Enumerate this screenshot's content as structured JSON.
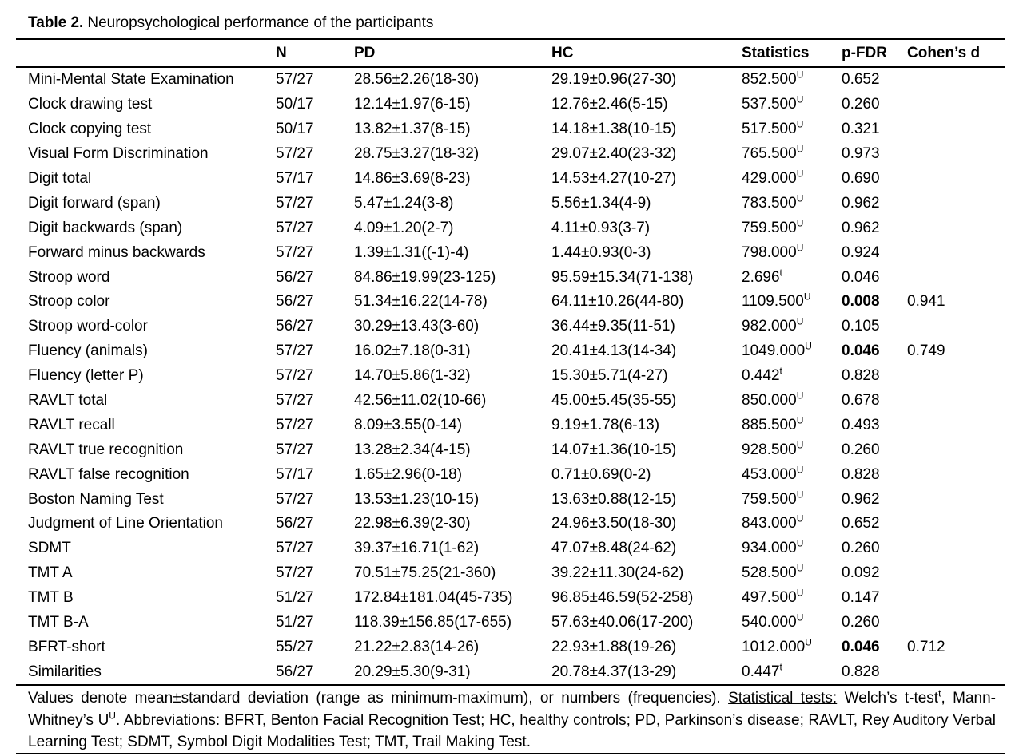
{
  "title": {
    "label": "Table 2.",
    "caption": "Neuropsychological performance of the participants"
  },
  "table": {
    "columns": [
      "",
      "N",
      "PD",
      "HC",
      "Statistics",
      "p-FDR",
      "Cohen’s d"
    ],
    "rows": [
      {
        "name": "Mini-Mental State Examination",
        "n": "57/27",
        "pd": "28.56±2.26(18-30)",
        "hc": "29.19±0.96(27-30)",
        "stat": "852.500",
        "stat_sup": "U",
        "p_fdr": "0.652",
        "p_bold": false,
        "cohens_d": ""
      },
      {
        "name": "Clock drawing test",
        "n": "50/17",
        "pd": "12.14±1.97(6-15)",
        "hc": "12.76±2.46(5-15)",
        "stat": "537.500",
        "stat_sup": "U",
        "p_fdr": "0.260",
        "p_bold": false,
        "cohens_d": ""
      },
      {
        "name": "Clock copying test",
        "n": "50/17",
        "pd": "13.82±1.37(8-15)",
        "hc": "14.18±1.38(10-15)",
        "stat": "517.500",
        "stat_sup": "U",
        "p_fdr": "0.321",
        "p_bold": false,
        "cohens_d": ""
      },
      {
        "name": "Visual Form Discrimination",
        "n": "57/27",
        "pd": "28.75±3.27(18-32)",
        "hc": "29.07±2.40(23-32)",
        "stat": "765.500",
        "stat_sup": "U",
        "p_fdr": "0.973",
        "p_bold": false,
        "cohens_d": ""
      },
      {
        "name": "Digit total",
        "n": "57/17",
        "pd": "14.86±3.69(8-23)",
        "hc": "14.53±4.27(10-27)",
        "stat": "429.000",
        "stat_sup": "U",
        "p_fdr": "0.690",
        "p_bold": false,
        "cohens_d": ""
      },
      {
        "name": "Digit forward (span)",
        "n": "57/27",
        "pd": "5.47±1.24(3-8)",
        "hc": "5.56±1.34(4-9)",
        "stat": "783.500",
        "stat_sup": "U",
        "p_fdr": "0.962",
        "p_bold": false,
        "cohens_d": ""
      },
      {
        "name": "Digit backwards (span)",
        "n": "57/27",
        "pd": "4.09±1.20(2-7)",
        "hc": "4.11±0.93(3-7)",
        "stat": "759.500",
        "stat_sup": "U",
        "p_fdr": "0.962",
        "p_bold": false,
        "cohens_d": ""
      },
      {
        "name": "Forward minus backwards",
        "n": "57/27",
        "pd": "1.39±1.31((-1)-4)",
        "hc": "1.44±0.93(0-3)",
        "stat": "798.000",
        "stat_sup": "U",
        "p_fdr": "0.924",
        "p_bold": false,
        "cohens_d": ""
      },
      {
        "name": "Stroop word",
        "n": "56/27",
        "pd": "84.86±19.99(23-125)",
        "hc": "95.59±15.34(71-138)",
        "stat": "2.696",
        "stat_sup": "t",
        "p_fdr": "0.046",
        "p_bold": false,
        "cohens_d": ""
      },
      {
        "name": "Stroop color",
        "n": "56/27",
        "pd": "51.34±16.22(14-78)",
        "hc": "64.11±10.26(44-80)",
        "stat": "1109.500",
        "stat_sup": "U",
        "p_fdr": "0.008",
        "p_bold": true,
        "cohens_d": "0.941"
      },
      {
        "name": "Stroop word-color",
        "n": "56/27",
        "pd": "30.29±13.43(3-60)",
        "hc": "36.44±9.35(11-51)",
        "stat": "982.000",
        "stat_sup": "U",
        "p_fdr": "0.105",
        "p_bold": false,
        "cohens_d": ""
      },
      {
        "name": "Fluency (animals)",
        "n": "57/27",
        "pd": "16.02±7.18(0-31)",
        "hc": "20.41±4.13(14-34)",
        "stat": "1049.000",
        "stat_sup": "U",
        "p_fdr": "0.046",
        "p_bold": true,
        "cohens_d": "0.749"
      },
      {
        "name": "Fluency (letter P)",
        "n": "57/27",
        "pd": "14.70±5.86(1-32)",
        "hc": "15.30±5.71(4-27)",
        "stat": "0.442",
        "stat_sup": "t",
        "p_fdr": "0.828",
        "p_bold": false,
        "cohens_d": ""
      },
      {
        "name": "RAVLT total",
        "n": "57/27",
        "pd": "42.56±11.02(10-66)",
        "hc": "45.00±5.45(35-55)",
        "stat": "850.000",
        "stat_sup": "U",
        "p_fdr": "0.678",
        "p_bold": false,
        "cohens_d": ""
      },
      {
        "name": "RAVLT recall",
        "n": "57/27",
        "pd": "8.09±3.55(0-14)",
        "hc": "9.19±1.78(6-13)",
        "stat": "885.500",
        "stat_sup": "U",
        "p_fdr": "0.493",
        "p_bold": false,
        "cohens_d": ""
      },
      {
        "name": "RAVLT true recognition",
        "n": "57/27",
        "pd": "13.28±2.34(4-15)",
        "hc": "14.07±1.36(10-15)",
        "stat": "928.500",
        "stat_sup": "U",
        "p_fdr": "0.260",
        "p_bold": false,
        "cohens_d": ""
      },
      {
        "name": "RAVLT false recognition",
        "n": "57/17",
        "pd": "1.65±2.96(0-18)",
        "hc": "0.71±0.69(0-2)",
        "stat": "453.000",
        "stat_sup": "U",
        "p_fdr": "0.828",
        "p_bold": false,
        "cohens_d": ""
      },
      {
        "name": "Boston Naming Test",
        "n": "57/27",
        "pd": "13.53±1.23(10-15)",
        "hc": "13.63±0.88(12-15)",
        "stat": "759.500",
        "stat_sup": "U",
        "p_fdr": "0.962",
        "p_bold": false,
        "cohens_d": ""
      },
      {
        "name": "Judgment of Line Orientation",
        "n": "56/27",
        "pd": "22.98±6.39(2-30)",
        "hc": "24.96±3.50(18-30)",
        "stat": "843.000",
        "stat_sup": "U",
        "p_fdr": "0.652",
        "p_bold": false,
        "cohens_d": ""
      },
      {
        "name": "SDMT",
        "n": "57/27",
        "pd": "39.37±16.71(1-62)",
        "hc": "47.07±8.48(24-62)",
        "stat": "934.000",
        "stat_sup": "U",
        "p_fdr": "0.260",
        "p_bold": false,
        "cohens_d": ""
      },
      {
        "name": "TMT A",
        "n": "57/27",
        "pd": "70.51±75.25(21-360)",
        "hc": "39.22±11.30(24-62)",
        "stat": "528.500",
        "stat_sup": "U",
        "p_fdr": "0.092",
        "p_bold": false,
        "cohens_d": ""
      },
      {
        "name": "TMT B",
        "n": "51/27",
        "pd": "172.84±181.04(45-735)",
        "hc": "96.85±46.59(52-258)",
        "stat": "497.500",
        "stat_sup": "U",
        "p_fdr": "0.147",
        "p_bold": false,
        "cohens_d": ""
      },
      {
        "name": "TMT B-A",
        "n": "51/27",
        "pd": "118.39±156.85(17-655)",
        "hc": "57.63±40.06(17-200)",
        "stat": "540.000",
        "stat_sup": "U",
        "p_fdr": "0.260",
        "p_bold": false,
        "cohens_d": ""
      },
      {
        "name": "BFRT-short",
        "n": "55/27",
        "pd": "21.22±2.83(14-26)",
        "hc": "22.93±1.88(19-26)",
        "stat": "1012.000",
        "stat_sup": "U",
        "p_fdr": "0.046",
        "p_bold": true,
        "cohens_d": "0.712"
      },
      {
        "name": "Similarities",
        "n": "56/27",
        "pd": "20.29±5.30(9-31)",
        "hc": "20.78±4.37(13-29)",
        "stat": "0.447",
        "stat_sup": "t",
        "p_fdr": "0.828",
        "p_bold": false,
        "cohens_d": ""
      }
    ]
  },
  "footnote": {
    "segments": [
      {
        "text": "Values denote mean±standard deviation (range as minimum-maximum), or numbers (frequencies). ",
        "style": "normal"
      },
      {
        "text": "Statistical tests:",
        "style": "underline"
      },
      {
        "text": " Welch’s t-test",
        "style": "normal"
      },
      {
        "text": "t",
        "style": "sup"
      },
      {
        "text": ", Mann-Whitney’s U",
        "style": "normal"
      },
      {
        "text": "U",
        "style": "sup"
      },
      {
        "text": ". ",
        "style": "normal"
      },
      {
        "text": "Abbreviations:",
        "style": "underline"
      },
      {
        "text": " BFRT, Benton Facial Recognition Test; HC, healthy controls; PD, Parkinson’s disease; RAVLT, Rey Auditory Verbal Learning Test; SDMT, Symbol Digit Modalities Test; TMT, Trail Making Test.",
        "style": "normal"
      }
    ]
  }
}
